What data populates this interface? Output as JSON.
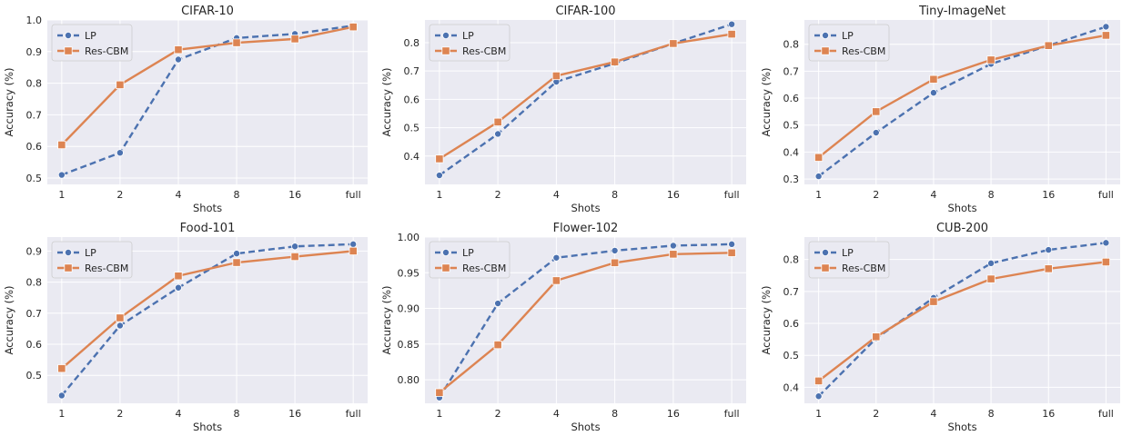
{
  "figure": {
    "colors": {
      "LP": "#4c72b0",
      "Res-CBM": "#dd8452",
      "axes_bg": "#eaeaf2",
      "grid": "#ffffff"
    }
  },
  "chart_data": [
    {
      "type": "line",
      "title": "CIFAR-10",
      "xlabel": "Shots",
      "ylabel": "Accuracy (%)",
      "categories": [
        "1",
        "2",
        "4",
        "8",
        "16",
        "full"
      ],
      "ylim": [
        0.48,
        1.0
      ],
      "yticks": [
        "0.5",
        "0.6",
        "0.7",
        "0.8",
        "0.9",
        "1.0"
      ],
      "grid": true,
      "legend": "top-left",
      "series": [
        {
          "name": "LP",
          "values": [
            0.51,
            0.58,
            0.875,
            0.943,
            0.956,
            0.982
          ]
        },
        {
          "name": "Res-CBM",
          "values": [
            0.605,
            0.795,
            0.906,
            0.928,
            0.94,
            0.978
          ]
        }
      ]
    },
    {
      "type": "line",
      "title": "CIFAR-100",
      "xlabel": "Shots",
      "ylabel": "Accuracy (%)",
      "categories": [
        "1",
        "2",
        "4",
        "8",
        "16",
        "full"
      ],
      "ylim": [
        0.3,
        0.88
      ],
      "yticks": [
        "0.4",
        "0.5",
        "0.6",
        "0.7",
        "0.8"
      ],
      "grid": true,
      "legend": "top-left",
      "series": [
        {
          "name": "LP",
          "values": [
            0.332,
            0.478,
            0.662,
            0.727,
            0.797,
            0.865
          ]
        },
        {
          "name": "Res-CBM",
          "values": [
            0.39,
            0.52,
            0.683,
            0.732,
            0.797,
            0.83
          ]
        }
      ]
    },
    {
      "type": "line",
      "title": "Tiny-ImageNet",
      "xlabel": "Shots",
      "ylabel": "Accuracy (%)",
      "categories": [
        "1",
        "2",
        "4",
        "8",
        "16",
        "full"
      ],
      "ylim": [
        0.28,
        0.89
      ],
      "yticks": [
        "0.3",
        "0.4",
        "0.5",
        "0.6",
        "0.7",
        "0.8"
      ],
      "grid": true,
      "legend": "top-left",
      "series": [
        {
          "name": "LP",
          "values": [
            0.31,
            0.472,
            0.62,
            0.727,
            0.795,
            0.865
          ]
        },
        {
          "name": "Res-CBM",
          "values": [
            0.38,
            0.55,
            0.67,
            0.742,
            0.795,
            0.833
          ]
        }
      ]
    },
    {
      "type": "line",
      "title": "Food-101",
      "xlabel": "Shots",
      "ylabel": "Accuracy (%)",
      "categories": [
        "1",
        "2",
        "4",
        "8",
        "16",
        "full"
      ],
      "ylim": [
        0.41,
        0.945
      ],
      "yticks": [
        "0.5",
        "0.6",
        "0.7",
        "0.8",
        "0.9"
      ],
      "grid": true,
      "legend": "top-left",
      "series": [
        {
          "name": "LP",
          "values": [
            0.435,
            0.66,
            0.782,
            0.892,
            0.915,
            0.922
          ]
        },
        {
          "name": "Res-CBM",
          "values": [
            0.522,
            0.685,
            0.82,
            0.863,
            0.882,
            0.9
          ]
        }
      ]
    },
    {
      "type": "line",
      "title": "Flower-102",
      "xlabel": "Shots",
      "ylabel": "Accuracy (%)",
      "categories": [
        "1",
        "2",
        "4",
        "8",
        "16",
        "full"
      ],
      "ylim": [
        0.767,
        1.0
      ],
      "yticks": [
        "0.80",
        "0.85",
        "0.90",
        "0.95",
        "1.00"
      ],
      "grid": true,
      "legend": "top-left",
      "series": [
        {
          "name": "LP",
          "values": [
            0.775,
            0.907,
            0.971,
            0.981,
            0.988,
            0.99
          ]
        },
        {
          "name": "Res-CBM",
          "values": [
            0.782,
            0.849,
            0.939,
            0.964,
            0.976,
            0.978
          ]
        }
      ]
    },
    {
      "type": "line",
      "title": "CUB-200",
      "xlabel": "Shots",
      "ylabel": "Accuracy (%)",
      "categories": [
        "1",
        "2",
        "4",
        "8",
        "16",
        "full"
      ],
      "ylim": [
        0.35,
        0.87
      ],
      "yticks": [
        "0.4",
        "0.5",
        "0.6",
        "0.7",
        "0.8"
      ],
      "grid": true,
      "legend": "top-left",
      "series": [
        {
          "name": "LP",
          "values": [
            0.372,
            0.553,
            0.68,
            0.788,
            0.83,
            0.852
          ]
        },
        {
          "name": "Res-CBM",
          "values": [
            0.42,
            0.558,
            0.668,
            0.739,
            0.771,
            0.792
          ]
        }
      ]
    }
  ]
}
